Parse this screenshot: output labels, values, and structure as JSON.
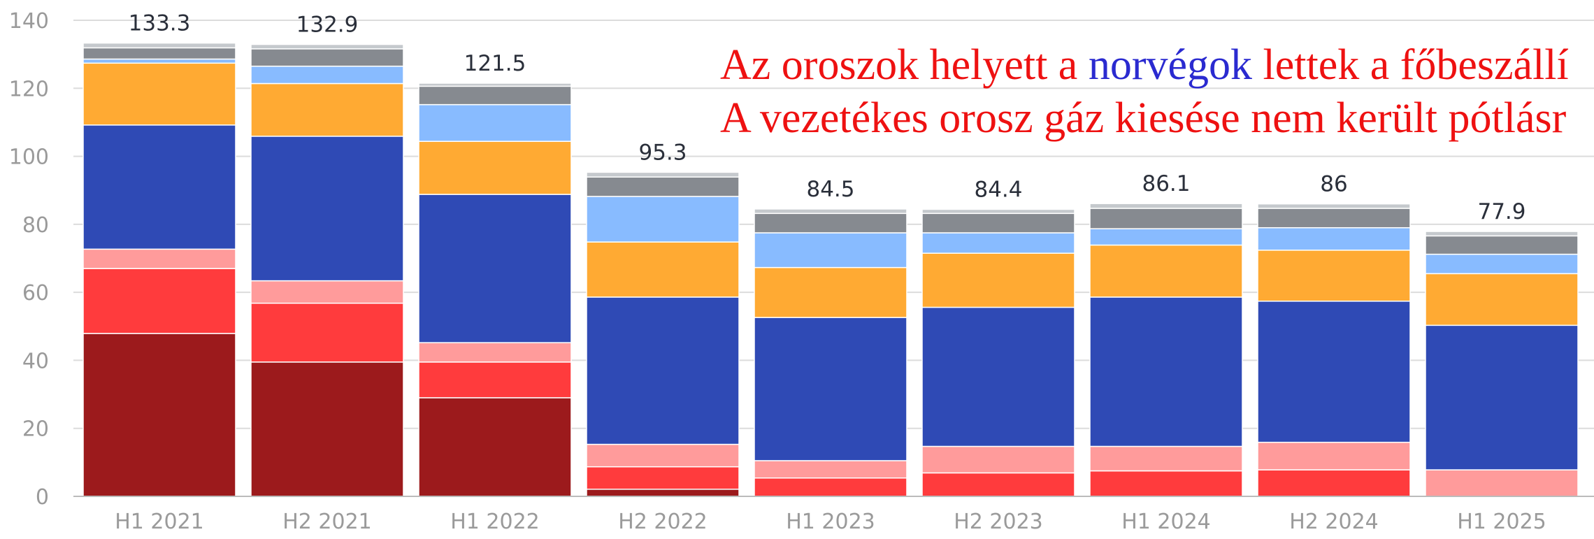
{
  "chart_data": {
    "type": "stacked_bar",
    "categories": [
      "H1 2021",
      "H2 2021",
      "H1 2022",
      "H2 2022",
      "H1 2023",
      "H2 2023",
      "H1 2024",
      "H2 2024",
      "H1 2025"
    ],
    "series": [
      {
        "color": "#9c1a1c",
        "values": [
          47.9,
          39.5,
          29.0,
          2.1,
          0,
          0,
          0,
          0,
          0
        ]
      },
      {
        "color": "#ff3b3d",
        "values": [
          19.1,
          17.3,
          10.5,
          6.6,
          5.4,
          6.9,
          7.5,
          7.8,
          0
        ]
      },
      {
        "color": "#ff9b9b",
        "values": [
          5.7,
          6.6,
          5.7,
          6.6,
          5.1,
          7.8,
          7.2,
          8.1,
          7.8
        ]
      },
      {
        "color": "#2f4ab5",
        "values": [
          36.5,
          42.5,
          43.6,
          43.3,
          42.1,
          40.9,
          43.9,
          41.5,
          42.5
        ]
      },
      {
        "color": "#ffaa33",
        "values": [
          18.2,
          15.5,
          15.6,
          16.2,
          14.7,
          15.9,
          15.3,
          15.0,
          15.2
        ]
      },
      {
        "color": "#88bbff",
        "values": [
          1.2,
          5.1,
          10.8,
          13.4,
          10.2,
          6.0,
          4.8,
          6.6,
          5.7
        ]
      },
      {
        "color": "#868a90",
        "values": [
          3.3,
          5.1,
          5.4,
          5.7,
          5.7,
          5.7,
          6.0,
          5.7,
          5.4
        ]
      },
      {
        "color": "#c5c9cd",
        "values": [
          1.4,
          1.3,
          0.9,
          1.4,
          1.3,
          1.2,
          1.4,
          1.3,
          1.3
        ]
      }
    ],
    "totals": [
      133.3,
      132.9,
      121.5,
      95.3,
      84.5,
      84.4,
      86.1,
      86,
      77.9
    ],
    "ylim": [
      0,
      140
    ],
    "yticks": [
      0,
      20,
      40,
      60,
      80,
      100,
      120,
      140
    ],
    "grid": true,
    "annotations": [
      {
        "parts": [
          {
            "text": "Az oroszok helyett a ",
            "color": "#ee1111"
          },
          {
            "text": "norvégok",
            "color": "#2a2ad0"
          },
          {
            "text": " lettek a főbeszállí",
            "color": "#ee1111"
          }
        ]
      },
      {
        "parts": [
          {
            "text": "A vezetékes orosz gáz kiesése nem került pótlásr",
            "color": "#ee1111"
          }
        ]
      }
    ]
  }
}
